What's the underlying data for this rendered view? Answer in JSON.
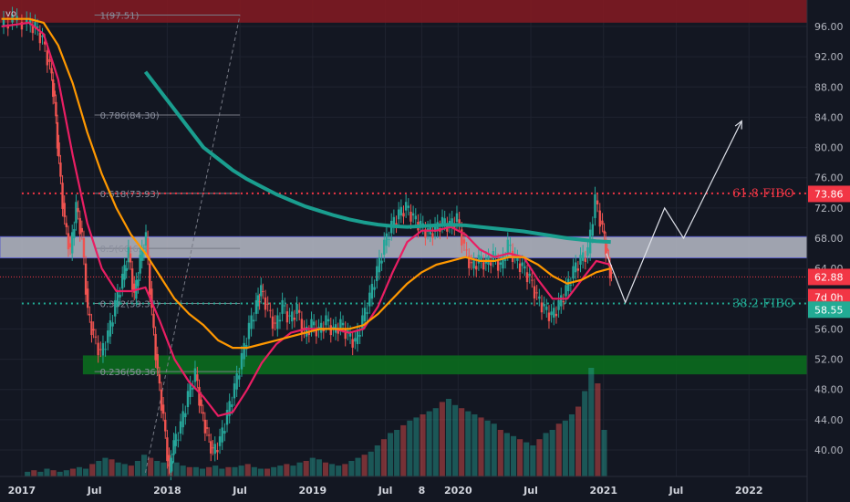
{
  "symbol_fragment": "vo",
  "chart_data": {
    "type": "candlestick",
    "x_ticks": [
      "2017",
      "Jul",
      "2018",
      "Jul",
      "2019",
      "Jul",
      "8",
      "2020",
      "Jul",
      "2021",
      "Jul",
      "2022"
    ],
    "x_tick_dates": [
      2017.0,
      2017.5,
      2018.0,
      2018.5,
      2019.0,
      2019.5,
      2019.75,
      2020.0,
      2020.5,
      2021.0,
      2021.5,
      2022.0
    ],
    "y_ticks": [
      40,
      44,
      48,
      52,
      56,
      60,
      64,
      68,
      72,
      76,
      80,
      84,
      88,
      92,
      96
    ],
    "y_tick_labels": [
      "40.00",
      "44.00",
      "48.00",
      "52.00",
      "56.00",
      "60.00",
      "64.00",
      "68.00",
      "72.00",
      "76.00",
      "80.00",
      "84.00",
      "88.00",
      "92.00",
      "96.00"
    ],
    "ylim": [
      36.5,
      99.5
    ],
    "xlim": [
      2016.85,
      2022.4
    ],
    "price_line": [
      [
        2016.86,
        96.0
      ],
      [
        2016.95,
        96.8
      ],
      [
        2017.05,
        96.2
      ],
      [
        2017.1,
        95.8
      ],
      [
        2017.15,
        94.0
      ],
      [
        2017.2,
        90.5
      ],
      [
        2017.23,
        86.0
      ],
      [
        2017.26,
        78.0
      ],
      [
        2017.3,
        70.0
      ],
      [
        2017.34,
        66.0
      ],
      [
        2017.38,
        72.0
      ],
      [
        2017.42,
        68.0
      ],
      [
        2017.46,
        58.0
      ],
      [
        2017.5,
        55.0
      ],
      [
        2017.55,
        52.5
      ],
      [
        2017.6,
        55.0
      ],
      [
        2017.65,
        59.0
      ],
      [
        2017.7,
        62.5
      ],
      [
        2017.74,
        66.0
      ],
      [
        2017.78,
        60.0
      ],
      [
        2017.82,
        65.0
      ],
      [
        2017.86,
        68.0
      ],
      [
        2017.9,
        58.0
      ],
      [
        2017.94,
        50.0
      ],
      [
        2017.98,
        44.0
      ],
      [
        2018.02,
        37.0
      ],
      [
        2018.05,
        40.5
      ],
      [
        2018.1,
        43.0
      ],
      [
        2018.15,
        47.0
      ],
      [
        2018.2,
        50.0
      ],
      [
        2018.24,
        45.0
      ],
      [
        2018.28,
        42.0
      ],
      [
        2018.32,
        39.5
      ],
      [
        2018.37,
        41.0
      ],
      [
        2018.42,
        44.5
      ],
      [
        2018.47,
        48.0
      ],
      [
        2018.52,
        52.0
      ],
      [
        2018.57,
        56.0
      ],
      [
        2018.62,
        59.0
      ],
      [
        2018.65,
        61.0
      ],
      [
        2018.7,
        58.5
      ],
      [
        2018.75,
        56.0
      ],
      [
        2018.8,
        59.0
      ],
      [
        2018.85,
        57.0
      ],
      [
        2018.9,
        58.5
      ],
      [
        2018.95,
        55.0
      ],
      [
        2019.0,
        56.5
      ],
      [
        2019.05,
        55.5
      ],
      [
        2019.1,
        57.0
      ],
      [
        2019.15,
        55.5
      ],
      [
        2019.2,
        56.5
      ],
      [
        2019.25,
        55.0
      ],
      [
        2019.3,
        54.0
      ],
      [
        2019.35,
        57.0
      ],
      [
        2019.4,
        60.0
      ],
      [
        2019.45,
        63.5
      ],
      [
        2019.5,
        67.0
      ],
      [
        2019.55,
        69.5
      ],
      [
        2019.6,
        71.0
      ],
      [
        2019.65,
        72.0
      ],
      [
        2019.7,
        70.5
      ],
      [
        2019.75,
        69.5
      ],
      [
        2019.8,
        68.5
      ],
      [
        2019.85,
        69.0
      ],
      [
        2019.9,
        70.0
      ],
      [
        2019.95,
        69.5
      ],
      [
        2020.0,
        70.5
      ],
      [
        2020.05,
        66.5
      ],
      [
        2020.1,
        64.0
      ],
      [
        2020.15,
        65.0
      ],
      [
        2020.2,
        64.5
      ],
      [
        2020.25,
        65.5
      ],
      [
        2020.3,
        64.0
      ],
      [
        2020.35,
        67.0
      ],
      [
        2020.4,
        65.0
      ],
      [
        2020.45,
        64.0
      ],
      [
        2020.5,
        62.5
      ],
      [
        2020.55,
        60.0
      ],
      [
        2020.6,
        58.5
      ],
      [
        2020.65,
        57.5
      ],
      [
        2020.7,
        59.0
      ],
      [
        2020.75,
        61.0
      ],
      [
        2020.8,
        63.5
      ],
      [
        2020.85,
        65.0
      ],
      [
        2020.9,
        66.0
      ],
      [
        2020.95,
        73.0
      ],
      [
        2021.0,
        69.0
      ],
      [
        2021.03,
        65.5
      ],
      [
        2021.06,
        62.5
      ]
    ],
    "volume_heights": [
      3,
      4,
      3,
      5,
      4,
      3,
      4,
      5,
      6,
      5,
      8,
      10,
      12,
      11,
      9,
      8,
      7,
      10,
      14,
      12,
      10,
      9,
      8,
      9,
      7,
      6,
      6,
      5,
      6,
      7,
      5,
      6,
      6,
      7,
      8,
      6,
      5,
      5,
      6,
      7,
      8,
      7,
      9,
      10,
      12,
      11,
      9,
      8,
      7,
      8,
      10,
      12,
      14,
      16,
      20,
      24,
      28,
      30,
      33,
      36,
      38,
      40,
      42,
      44,
      48,
      50,
      46,
      44,
      42,
      40,
      38,
      36,
      34,
      30,
      28,
      26,
      24,
      22,
      20,
      24,
      28,
      30,
      34,
      36,
      40,
      45,
      55,
      70,
      60,
      30
    ],
    "overlay_lines": [
      {
        "label": "",
        "color": "#e91e63",
        "points": [
          [
            2016.86,
            96.0
          ],
          [
            2017.05,
            96.5
          ],
          [
            2017.15,
            95.0
          ],
          [
            2017.25,
            89.0
          ],
          [
            2017.35,
            79.0
          ],
          [
            2017.45,
            70.0
          ],
          [
            2017.55,
            64.0
          ],
          [
            2017.65,
            61.0
          ],
          [
            2017.75,
            61.0
          ],
          [
            2017.85,
            61.5
          ],
          [
            2017.95,
            57.0
          ],
          [
            2018.05,
            52.0
          ],
          [
            2018.15,
            49.0
          ],
          [
            2018.25,
            47.0
          ],
          [
            2018.35,
            44.5
          ],
          [
            2018.45,
            45.0
          ],
          [
            2018.55,
            48.0
          ],
          [
            2018.65,
            51.5
          ],
          [
            2018.75,
            54.0
          ],
          [
            2018.85,
            55.5
          ],
          [
            2018.95,
            56.0
          ],
          [
            2019.05,
            56.0
          ],
          [
            2019.15,
            56.0
          ],
          [
            2019.25,
            55.5
          ],
          [
            2019.35,
            56.0
          ],
          [
            2019.45,
            59.0
          ],
          [
            2019.55,
            63.5
          ],
          [
            2019.65,
            67.5
          ],
          [
            2019.75,
            69.0
          ],
          [
            2019.85,
            69.0
          ],
          [
            2019.95,
            69.5
          ],
          [
            2020.05,
            68.5
          ],
          [
            2020.15,
            66.5
          ],
          [
            2020.25,
            65.5
          ],
          [
            2020.35,
            66.0
          ],
          [
            2020.45,
            65.5
          ],
          [
            2020.55,
            62.5
          ],
          [
            2020.65,
            60.0
          ],
          [
            2020.75,
            60.0
          ],
          [
            2020.85,
            62.5
          ],
          [
            2020.95,
            65.0
          ],
          [
            2021.05,
            64.5
          ]
        ]
      },
      {
        "label": "",
        "color": "#ff9800",
        "points": [
          [
            2016.86,
            97.0
          ],
          [
            2017.05,
            97.0
          ],
          [
            2017.15,
            96.5
          ],
          [
            2017.25,
            93.5
          ],
          [
            2017.35,
            88.5
          ],
          [
            2017.45,
            82.0
          ],
          [
            2017.55,
            76.5
          ],
          [
            2017.65,
            72.0
          ],
          [
            2017.75,
            68.5
          ],
          [
            2017.85,
            66.0
          ],
          [
            2017.95,
            63.0
          ],
          [
            2018.05,
            60.0
          ],
          [
            2018.15,
            58.0
          ],
          [
            2018.25,
            56.5
          ],
          [
            2018.35,
            54.5
          ],
          [
            2018.45,
            53.5
          ],
          [
            2018.55,
            53.5
          ],
          [
            2018.65,
            54.0
          ],
          [
            2018.75,
            54.5
          ],
          [
            2018.85,
            55.0
          ],
          [
            2018.95,
            55.5
          ],
          [
            2019.05,
            56.0
          ],
          [
            2019.15,
            56.0
          ],
          [
            2019.25,
            56.0
          ],
          [
            2019.35,
            56.5
          ],
          [
            2019.45,
            58.0
          ],
          [
            2019.55,
            60.0
          ],
          [
            2019.65,
            62.0
          ],
          [
            2019.75,
            63.5
          ],
          [
            2019.85,
            64.5
          ],
          [
            2019.95,
            65.0
          ],
          [
            2020.05,
            65.5
          ],
          [
            2020.15,
            65.0
          ],
          [
            2020.25,
            65.0
          ],
          [
            2020.35,
            65.5
          ],
          [
            2020.45,
            65.5
          ],
          [
            2020.55,
            64.5
          ],
          [
            2020.65,
            63.0
          ],
          [
            2020.75,
            62.0
          ],
          [
            2020.85,
            62.5
          ],
          [
            2020.95,
            63.5
          ],
          [
            2021.05,
            64.0
          ]
        ]
      },
      {
        "label": "",
        "color": "#1a9e8f",
        "points": [
          [
            2017.85,
            90.0
          ],
          [
            2017.95,
            87.5
          ],
          [
            2018.05,
            85.0
          ],
          [
            2018.15,
            82.5
          ],
          [
            2018.25,
            80.0
          ],
          [
            2018.35,
            78.5
          ],
          [
            2018.45,
            77.0
          ],
          [
            2018.55,
            75.8
          ],
          [
            2018.65,
            74.8
          ],
          [
            2018.75,
            73.8
          ],
          [
            2018.85,
            73.0
          ],
          [
            2018.95,
            72.2
          ],
          [
            2019.05,
            71.6
          ],
          [
            2019.15,
            71.0
          ],
          [
            2019.25,
            70.5
          ],
          [
            2019.35,
            70.1
          ],
          [
            2019.45,
            69.8
          ],
          [
            2019.55,
            69.6
          ],
          [
            2019.65,
            69.5
          ],
          [
            2019.75,
            69.6
          ],
          [
            2019.85,
            69.7
          ],
          [
            2019.95,
            69.8
          ],
          [
            2020.05,
            69.7
          ],
          [
            2020.15,
            69.5
          ],
          [
            2020.25,
            69.3
          ],
          [
            2020.35,
            69.1
          ],
          [
            2020.45,
            68.9
          ],
          [
            2020.55,
            68.6
          ],
          [
            2020.65,
            68.3
          ],
          [
            2020.75,
            68.0
          ],
          [
            2020.85,
            67.8
          ],
          [
            2020.95,
            67.6
          ],
          [
            2021.05,
            67.5
          ]
        ]
      }
    ],
    "fib_retracement": {
      "labels": [
        "1(97.51)",
        "0.786(84.30)",
        "0.618(73.93)",
        "0.5(66.65)",
        "0.382(59.37)",
        "0.236(50.36)"
      ],
      "values": [
        97.51,
        84.3,
        73.93,
        66.65,
        59.37,
        50.36
      ],
      "color": "#787b86"
    },
    "fibo_lines": [
      {
        "label": "61.8 FIBO",
        "value": 73.93,
        "color": "#f23645"
      },
      {
        "label": "38.2 FIBO",
        "value": 59.37,
        "color": "#22ab94"
      }
    ],
    "zones": [
      {
        "name": "resistance-zone",
        "from": 96.5,
        "to": 99.5,
        "color": "#801922"
      },
      {
        "name": "gray-zone",
        "from": 65.4,
        "to": 68.2,
        "color": "#b8bcc8"
      },
      {
        "name": "support-zone",
        "from": 50.0,
        "to": 52.5,
        "color": "#0b6b1e"
      }
    ],
    "last_price_line": {
      "value": 62.88,
      "color": "#f23645"
    },
    "projection_arrow": [
      [
        2021.02,
        66.0
      ],
      [
        2021.15,
        59.5
      ],
      [
        2021.42,
        72.0
      ],
      [
        2021.55,
        68.0
      ],
      [
        2021.95,
        83.5
      ]
    ],
    "price_badges": [
      {
        "text": "73.86",
        "value": 73.86,
        "bg": "#f23645",
        "fg": "#ffffff"
      },
      {
        "text": "62.88",
        "value": 62.88,
        "bg": "#f23645",
        "fg": "#ffffff"
      },
      {
        "text": "7d 0h",
        "value": 60.0,
        "bg": "#f23645",
        "fg": "#ffffff"
      },
      {
        "text": "58.55",
        "value": 58.55,
        "bg": "#22ab94",
        "fg": "#ffffff"
      }
    ],
    "grid": true
  }
}
